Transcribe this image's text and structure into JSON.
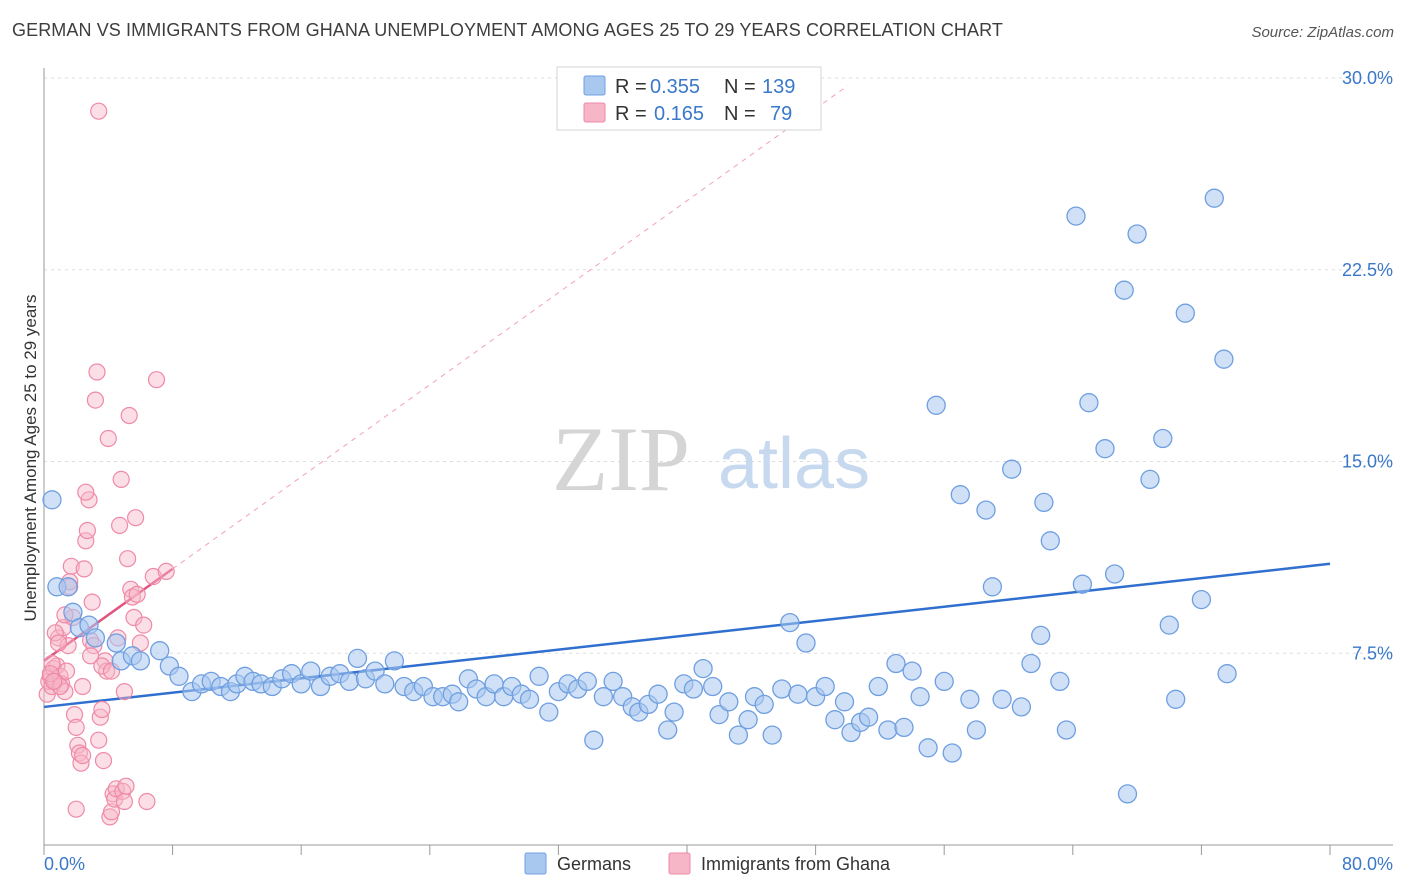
{
  "title": "GERMAN VS IMMIGRANTS FROM GHANA UNEMPLOYMENT AMONG AGES 25 TO 29 YEARS CORRELATION CHART",
  "source": "Source: ZipAtlas.com",
  "watermark": {
    "zip": "ZIP",
    "atlas": "atlas"
  },
  "colors": {
    "germans_fill": "#a9c8f0",
    "germans_stroke": "#6f9fe0",
    "germans_line": "#2f6fcf",
    "ghana_fill": "#f7b6c8",
    "ghana_stroke": "#ee8aa8",
    "ghana_line": "#e0557f",
    "grid": "#dddddd",
    "tick_text": "#3a78c9"
  },
  "legend_box": {
    "rows": [
      {
        "r_label": "R = ",
        "r_value": "0.355",
        "n_label": "N = ",
        "n_value": "139"
      },
      {
        "r_label": "R = ",
        "r_value": "0.165",
        "n_label": "N = ",
        "n_value": "79"
      }
    ]
  },
  "chart_data": {
    "type": "scatter",
    "title": "GERMAN VS IMMIGRANTS FROM GHANA UNEMPLOYMENT AMONG AGES 25 TO 29 YEARS CORRELATION CHART",
    "xlabel": "",
    "ylabel": "Unemployment Among Ages 25 to 29 years",
    "xlim": [
      0,
      80
    ],
    "ylim": [
      0,
      30
    ],
    "x_tick_labels": [
      "0.0%",
      "80.0%"
    ],
    "y_ticks": [
      7.5,
      15.0,
      22.5,
      30.0
    ],
    "y_tick_labels": [
      "7.5%",
      "15.0%",
      "22.5%",
      "30.0%"
    ],
    "grid": "horizontal dashed",
    "legend_position": "bottom",
    "series": [
      {
        "name": "Germans",
        "R": 0.355,
        "N": 139,
        "trend": {
          "x": [
            0,
            80
          ],
          "y": [
            5.4,
            11.0
          ]
        },
        "points": [
          [
            0.5,
            13.5
          ],
          [
            0.8,
            10.1
          ],
          [
            1.5,
            10.1
          ],
          [
            1.8,
            9.1
          ],
          [
            2.2,
            8.5
          ],
          [
            2.8,
            8.6
          ],
          [
            3.2,
            8.1
          ],
          [
            4.5,
            7.9
          ],
          [
            4.8,
            7.2
          ],
          [
            5.5,
            7.4
          ],
          [
            6.0,
            7.2
          ],
          [
            7.2,
            7.6
          ],
          [
            7.8,
            7.0
          ],
          [
            8.4,
            6.6
          ],
          [
            9.2,
            6.0
          ],
          [
            9.8,
            6.3
          ],
          [
            10.4,
            6.4
          ],
          [
            11.0,
            6.2
          ],
          [
            11.6,
            6.0
          ],
          [
            12.0,
            6.3
          ],
          [
            12.5,
            6.6
          ],
          [
            13.0,
            6.4
          ],
          [
            13.5,
            6.3
          ],
          [
            14.2,
            6.2
          ],
          [
            14.8,
            6.5
          ],
          [
            15.4,
            6.7
          ],
          [
            16.0,
            6.3
          ],
          [
            16.6,
            6.8
          ],
          [
            17.2,
            6.2
          ],
          [
            17.8,
            6.6
          ],
          [
            18.4,
            6.7
          ],
          [
            19.0,
            6.4
          ],
          [
            19.5,
            7.3
          ],
          [
            20.0,
            6.5
          ],
          [
            20.6,
            6.8
          ],
          [
            21.2,
            6.3
          ],
          [
            21.8,
            7.2
          ],
          [
            22.4,
            6.2
          ],
          [
            23.0,
            6.0
          ],
          [
            23.6,
            6.2
          ],
          [
            24.2,
            5.8
          ],
          [
            24.8,
            5.8
          ],
          [
            25.4,
            5.9
          ],
          [
            25.8,
            5.6
          ],
          [
            26.4,
            6.5
          ],
          [
            26.9,
            6.1
          ],
          [
            27.5,
            5.8
          ],
          [
            28.0,
            6.3
          ],
          [
            28.6,
            5.8
          ],
          [
            29.1,
            6.2
          ],
          [
            29.7,
            5.9
          ],
          [
            30.2,
            5.7
          ],
          [
            30.8,
            6.6
          ],
          [
            31.4,
            5.2
          ],
          [
            32.0,
            6.0
          ],
          [
            32.6,
            6.3
          ],
          [
            33.2,
            6.1
          ],
          [
            33.8,
            6.4
          ],
          [
            34.2,
            4.1
          ],
          [
            34.8,
            5.8
          ],
          [
            35.4,
            6.4
          ],
          [
            36.0,
            5.8
          ],
          [
            36.6,
            5.4
          ],
          [
            37.0,
            5.2
          ],
          [
            37.6,
            5.5
          ],
          [
            38.2,
            5.9
          ],
          [
            38.8,
            4.5
          ],
          [
            39.2,
            5.2
          ],
          [
            39.8,
            6.3
          ],
          [
            40.4,
            6.1
          ],
          [
            41.0,
            6.9
          ],
          [
            41.6,
            6.2
          ],
          [
            42.0,
            5.1
          ],
          [
            42.6,
            5.6
          ],
          [
            43.2,
            4.3
          ],
          [
            43.8,
            4.9
          ],
          [
            44.2,
            5.8
          ],
          [
            44.8,
            5.5
          ],
          [
            45.3,
            4.3
          ],
          [
            45.9,
            6.1
          ],
          [
            46.4,
            8.7
          ],
          [
            46.9,
            5.9
          ],
          [
            47.4,
            7.9
          ],
          [
            48.0,
            5.8
          ],
          [
            48.6,
            6.2
          ],
          [
            49.2,
            4.9
          ],
          [
            49.8,
            5.6
          ],
          [
            50.2,
            4.4
          ],
          [
            50.8,
            4.8
          ],
          [
            51.3,
            5.0
          ],
          [
            51.9,
            6.2
          ],
          [
            52.5,
            4.5
          ],
          [
            53.0,
            7.1
          ],
          [
            53.5,
            4.6
          ],
          [
            54.0,
            6.8
          ],
          [
            54.5,
            5.8
          ],
          [
            55.0,
            3.8
          ],
          [
            55.5,
            17.2
          ],
          [
            56.0,
            6.4
          ],
          [
            56.5,
            3.6
          ],
          [
            57.0,
            13.7
          ],
          [
            57.6,
            5.7
          ],
          [
            58.0,
            4.5
          ],
          [
            58.6,
            13.1
          ],
          [
            59.0,
            10.1
          ],
          [
            59.6,
            5.7
          ],
          [
            60.2,
            14.7
          ],
          [
            60.8,
            5.4
          ],
          [
            61.4,
            7.1
          ],
          [
            62.0,
            8.2
          ],
          [
            62.2,
            13.4
          ],
          [
            62.6,
            11.9
          ],
          [
            63.2,
            6.4
          ],
          [
            63.6,
            4.5
          ],
          [
            64.2,
            24.6
          ],
          [
            64.6,
            10.2
          ],
          [
            65.0,
            17.3
          ],
          [
            66.0,
            15.5
          ],
          [
            66.6,
            10.6
          ],
          [
            67.2,
            21.7
          ],
          [
            67.4,
            2.0
          ],
          [
            68.0,
            23.9
          ],
          [
            68.8,
            14.3
          ],
          [
            69.6,
            15.9
          ],
          [
            70.0,
            8.6
          ],
          [
            70.4,
            5.7
          ],
          [
            71.0,
            20.8
          ],
          [
            72.0,
            9.6
          ],
          [
            72.8,
            25.3
          ],
          [
            73.4,
            19.0
          ],
          [
            73.6,
            6.7
          ]
        ]
      },
      {
        "name": "Immigrants from Ghana",
        "R": 0.165,
        "N": 79,
        "trend": {
          "x": [
            0,
            8
          ],
          "y": [
            7.2,
            10.8
          ]
        },
        "points": [
          [
            0.2,
            5.9
          ],
          [
            0.3,
            6.4
          ],
          [
            0.4,
            6.6
          ],
          [
            0.5,
            6.2
          ],
          [
            0.6,
            6.9
          ],
          [
            0.7,
            6.4
          ],
          [
            0.8,
            7.0
          ],
          [
            0.9,
            8.1
          ],
          [
            1.0,
            6.6
          ],
          [
            1.1,
            6.3
          ],
          [
            1.2,
            8.5
          ],
          [
            1.3,
            6.0
          ],
          [
            1.4,
            6.8
          ],
          [
            1.5,
            7.8
          ],
          [
            1.6,
            10.1
          ],
          [
            1.7,
            10.9
          ],
          [
            1.8,
            8.9
          ],
          [
            1.9,
            5.1
          ],
          [
            2.0,
            4.6
          ],
          [
            2.1,
            3.9
          ],
          [
            2.2,
            3.6
          ],
          [
            2.3,
            3.2
          ],
          [
            2.4,
            6.2
          ],
          [
            2.5,
            10.8
          ],
          [
            2.6,
            11.9
          ],
          [
            2.7,
            12.3
          ],
          [
            2.8,
            13.5
          ],
          [
            2.9,
            8.0
          ],
          [
            3.0,
            9.5
          ],
          [
            3.1,
            7.8
          ],
          [
            3.2,
            17.4
          ],
          [
            3.3,
            18.5
          ],
          [
            3.4,
            4.1
          ],
          [
            3.5,
            5.0
          ],
          [
            3.6,
            5.3
          ],
          [
            3.7,
            3.3
          ],
          [
            3.8,
            7.2
          ],
          [
            3.9,
            6.8
          ],
          [
            4.0,
            15.9
          ],
          [
            4.1,
            1.1
          ],
          [
            4.2,
            1.3
          ],
          [
            4.3,
            2.0
          ],
          [
            4.4,
            1.8
          ],
          [
            4.5,
            2.2
          ],
          [
            4.6,
            8.1
          ],
          [
            4.7,
            12.5
          ],
          [
            4.8,
            14.3
          ],
          [
            4.9,
            2.1
          ],
          [
            5.0,
            1.7
          ],
          [
            5.1,
            2.3
          ],
          [
            5.2,
            11.2
          ],
          [
            5.3,
            16.8
          ],
          [
            5.4,
            10.0
          ],
          [
            5.5,
            9.7
          ],
          [
            5.6,
            8.9
          ],
          [
            5.7,
            12.8
          ],
          [
            5.8,
            9.8
          ],
          [
            6.0,
            7.9
          ],
          [
            6.2,
            8.6
          ],
          [
            6.4,
            1.7
          ],
          [
            6.8,
            10.5
          ],
          [
            7.0,
            18.2
          ],
          [
            7.6,
            10.7
          ],
          [
            2.0,
            1.4
          ],
          [
            0.5,
            7.1
          ],
          [
            0.7,
            8.3
          ],
          [
            1.3,
            9.0
          ],
          [
            1.6,
            10.3
          ],
          [
            2.4,
            3.5
          ],
          [
            2.9,
            7.4
          ],
          [
            3.6,
            7.0
          ],
          [
            1.0,
            6.2
          ],
          [
            0.4,
            6.7
          ],
          [
            0.9,
            7.9
          ],
          [
            2.6,
            13.8
          ],
          [
            4.2,
            6.8
          ],
          [
            5.0,
            6.0
          ],
          [
            3.4,
            28.7
          ],
          [
            0.6,
            6.4
          ]
        ]
      }
    ]
  }
}
